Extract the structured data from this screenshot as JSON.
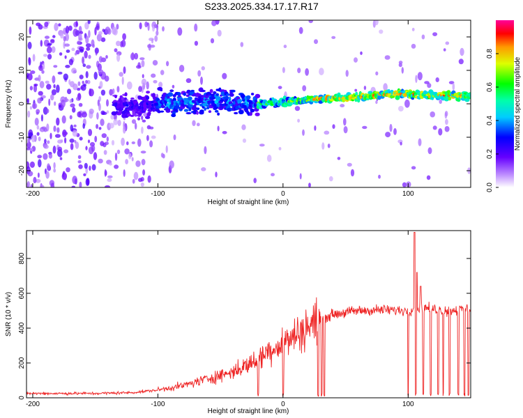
{
  "title": "S233.2025.334.17.17.R17",
  "chart_data": [
    {
      "type": "heatmap",
      "title": "S233.2025.334.17.17.R17",
      "xlabel": "Height of straight line (km)",
      "ylabel": "Frequency (Hz)",
      "xlim": [
        -205,
        150
      ],
      "ylim": [
        -25,
        25
      ],
      "xticks": [
        -200,
        -100,
        0,
        100
      ],
      "yticks": [
        -20,
        -10,
        0,
        10,
        20
      ],
      "colorbar": {
        "label": "Normalized spectral amplitude",
        "range": [
          0,
          1
        ],
        "ticks": [
          0.0,
          0.2,
          0.4,
          0.6,
          0.8
        ],
        "colormap": [
          "#ff00ff",
          "#ff0000",
          "#ffcc00",
          "#00ff00",
          "#00ffff",
          "#0000ff",
          "#8800ff",
          "#ffffff"
        ]
      },
      "ridge": {
        "description_points": [
          {
            "x": -130,
            "y": -1
          },
          {
            "x": -100,
            "y": 0
          },
          {
            "x": -50,
            "y": 1
          },
          {
            "x": -20,
            "y": 0
          },
          {
            "x": 0,
            "y": 0.5
          },
          {
            "x": 30,
            "y": 1.5
          },
          {
            "x": 60,
            "y": 2
          },
          {
            "x": 90,
            "y": 3
          },
          {
            "x": 120,
            "y": 2.5
          },
          {
            "x": 150,
            "y": 2.5
          }
        ],
        "peak_amplitude": 0.95
      }
    },
    {
      "type": "line",
      "xlabel": "Height of straight line (km)",
      "ylabel": "SNR (10 * v/v)",
      "xlim": [
        -205,
        150
      ],
      "ylim": [
        0,
        960
      ],
      "xticks": [
        -200,
        -100,
        0,
        100
      ],
      "yticks": [
        0,
        200,
        400,
        600,
        800
      ],
      "color": "#ee2222",
      "trend": [
        {
          "x": -205,
          "y": 25
        },
        {
          "x": -150,
          "y": 25
        },
        {
          "x": -120,
          "y": 30
        },
        {
          "x": -100,
          "y": 45
        },
        {
          "x": -80,
          "y": 70
        },
        {
          "x": -60,
          "y": 110
        },
        {
          "x": -40,
          "y": 150
        },
        {
          "x": -25,
          "y": 200
        },
        {
          "x": -10,
          "y": 280
        },
        {
          "x": 0,
          "y": 310
        },
        {
          "x": 10,
          "y": 360
        },
        {
          "x": 20,
          "y": 410
        },
        {
          "x": 30,
          "y": 450
        },
        {
          "x": 40,
          "y": 480
        },
        {
          "x": 60,
          "y": 500
        },
        {
          "x": 80,
          "y": 505
        },
        {
          "x": 100,
          "y": 500
        },
        {
          "x": 110,
          "y": 520
        },
        {
          "x": 130,
          "y": 500
        },
        {
          "x": 150,
          "y": 510
        }
      ],
      "spikes": [
        {
          "x": 105,
          "y": 950
        },
        {
          "x": 107,
          "y": 720
        },
        {
          "x": 110,
          "y": 640
        }
      ],
      "dropouts_x": [
        -20,
        0,
        28,
        31,
        33,
        100,
        106,
        112,
        118,
        124,
        128,
        133,
        140,
        145,
        148
      ]
    }
  ]
}
